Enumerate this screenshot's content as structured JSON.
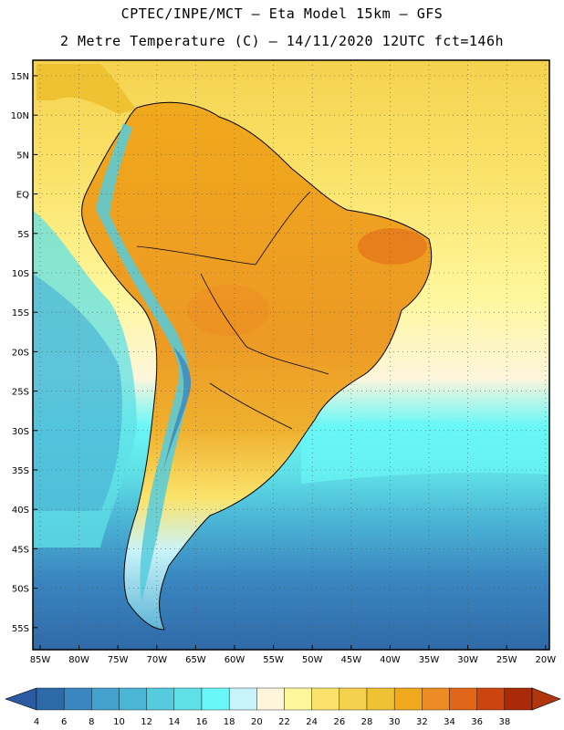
{
  "header": {
    "line1": "CPTEC/INPE/MCT –  Eta Model 15km – GFS",
    "line2": "2 Metre Temperature (C) – 14/11/2020 12UTC fct=146h"
  },
  "axes": {
    "lat_labels": [
      "15N",
      "10N",
      "5N",
      "EQ",
      "5S",
      "10S",
      "15S",
      "20S",
      "25S",
      "30S",
      "35S",
      "40S",
      "45S",
      "50S",
      "55S"
    ],
    "lon_labels": [
      "85W",
      "80W",
      "75W",
      "70W",
      "65W",
      "60W",
      "55W",
      "50W",
      "45W",
      "40W",
      "35W",
      "30W",
      "25W",
      "20W"
    ]
  },
  "colorbar": {
    "ticks": [
      "4",
      "6",
      "8",
      "10",
      "12",
      "14",
      "16",
      "18",
      "20",
      "22",
      "24",
      "26",
      "28",
      "30",
      "32",
      "34",
      "36",
      "38"
    ],
    "colors": [
      "#2f6aa8",
      "#3a86c0",
      "#44a0cc",
      "#4bb5d6",
      "#56cbdc",
      "#5fe0e6",
      "#6af7f7",
      "#c9f3fa",
      "#fdf6dc",
      "#fef79c",
      "#fbe36b",
      "#f5d24e",
      "#efc233",
      "#f0a81c",
      "#ec8c22",
      "#e2661a",
      "#cc4410",
      "#a82a08"
    ],
    "low_color": "#2c5aa0",
    "high_color": "#b0360e"
  }
}
